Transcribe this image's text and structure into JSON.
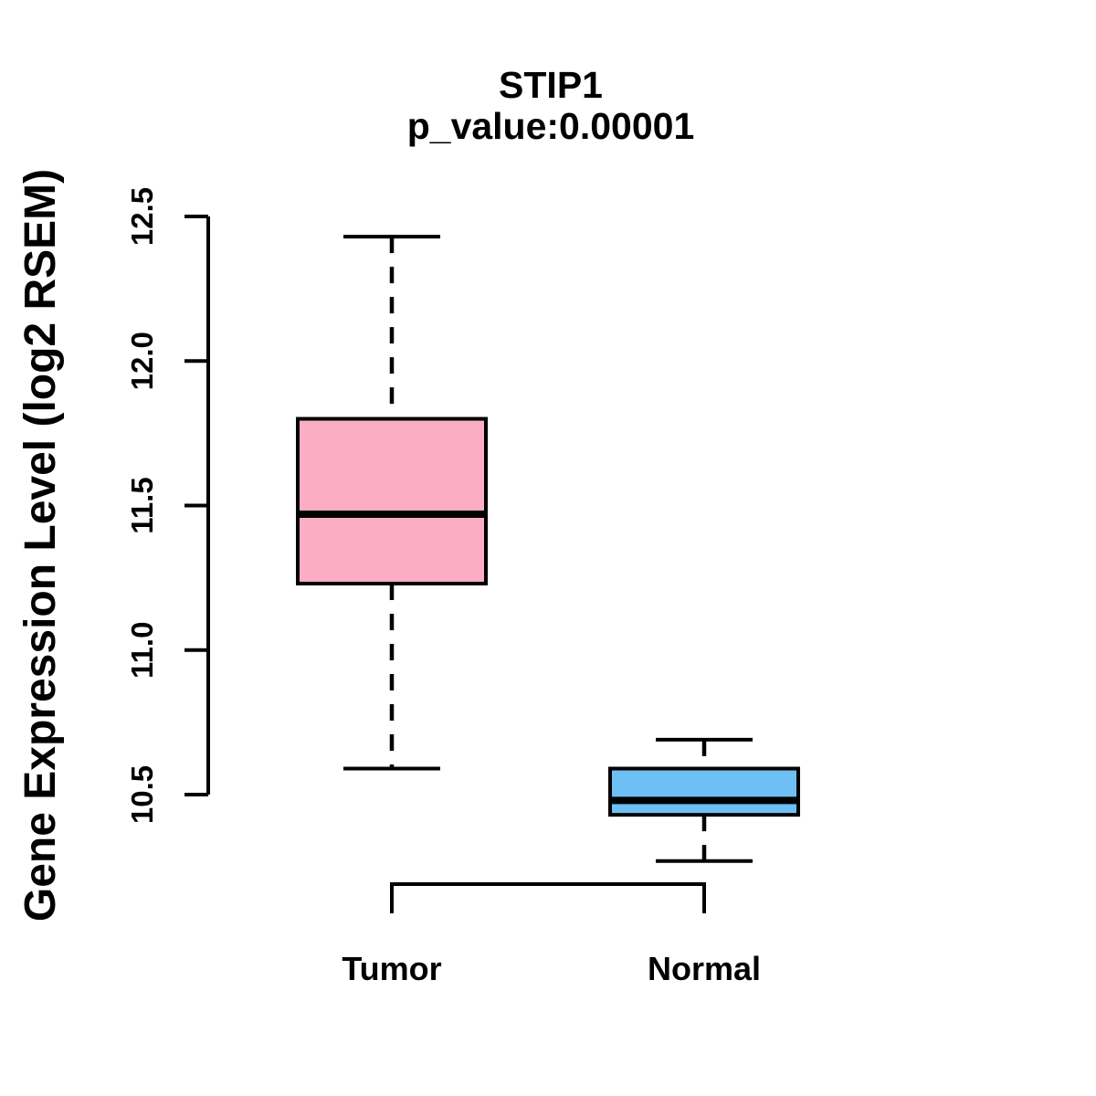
{
  "figure": {
    "title": "STIP1",
    "subtitle": "p_value:0.00001",
    "y_axis_label": "Gene Expression Level (log2 RSEM)"
  },
  "chart_data": {
    "type": "boxplot",
    "title": "STIP1",
    "subtitle": "p_value:0.00001",
    "ylabel": "Gene Expression Level (log2 RSEM)",
    "xlabel": "",
    "ylim": [
      10.5,
      12.5
    ],
    "yticks": [
      10.5,
      11.0,
      11.5,
      12.0,
      12.5
    ],
    "ytick_labels": [
      "10.5",
      "11.0",
      "11.5",
      "12.0",
      "12.5"
    ],
    "categories": [
      "Tumor",
      "Normal"
    ],
    "series": [
      {
        "name": "Tumor",
        "lower_whisker": 10.59,
        "q1": 11.23,
        "median": 11.47,
        "q3": 11.8,
        "upper_whisker": 12.43,
        "fill_color": "#FBADC3"
      },
      {
        "name": "Normal",
        "lower_whisker": 10.27,
        "q1": 10.43,
        "median": 10.48,
        "q3": 10.59,
        "upper_whisker": 10.69,
        "fill_color": "#6EBFF4"
      }
    ],
    "whisker_style": "dashed",
    "colors": {
      "box_border": "#000000",
      "median_line": "#000000",
      "axis": "#000000",
      "text": "#000000",
      "background": "#FFFFFF"
    },
    "grid": false,
    "legend": false
  }
}
